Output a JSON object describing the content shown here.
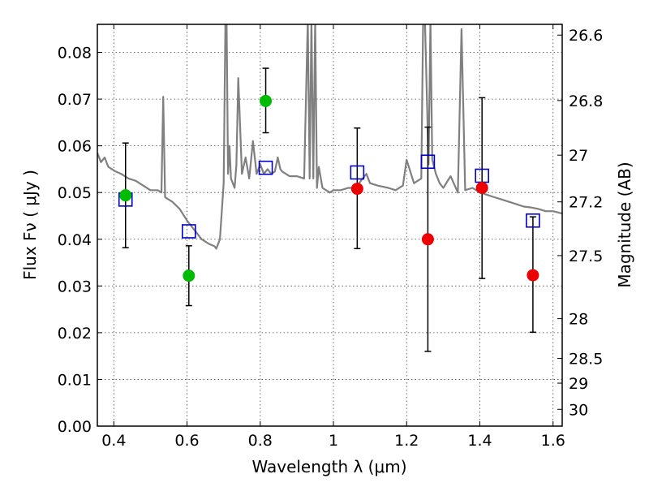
{
  "chart_data": {
    "type": "scatter",
    "title": "",
    "xlabel": "Wavelength  λ (μm)",
    "ylabel": "Flux  Fν  ( μJy )",
    "y2label": "Magnitude (AB)",
    "xlim": [
      0.355,
      1.625
    ],
    "ylim": [
      0.0,
      0.086
    ],
    "grid": true,
    "x_ticks": [
      0.4,
      0.6,
      0.8,
      1.0,
      1.2,
      1.4,
      1.6
    ],
    "x_tick_labels": [
      "0.4",
      "0.6",
      "0.8",
      "1",
      "1.2",
      "1.4",
      "1.6"
    ],
    "y_ticks": [
      0.0,
      0.01,
      0.02,
      0.03,
      0.04,
      0.05,
      0.06,
      0.07,
      0.08
    ],
    "y_tick_labels": [
      "0.00",
      "0.01",
      "0.02",
      "0.03",
      "0.04",
      "0.05",
      "0.06",
      "0.07",
      "0.08"
    ],
    "y2_ticks": [
      {
        "flux": 0.0837,
        "label": "26.6"
      },
      {
        "flux": 0.0697,
        "label": "26.8"
      },
      {
        "flux": 0.058,
        "label": "27"
      },
      {
        "flux": 0.048,
        "label": "27.2"
      },
      {
        "flux": 0.0365,
        "label": "27.5"
      },
      {
        "flux": 0.023,
        "label": "28"
      },
      {
        "flux": 0.0145,
        "label": "28.5"
      },
      {
        "flux": 0.0092,
        "label": "29"
      },
      {
        "flux": 0.0036,
        "label": "30"
      }
    ],
    "colors": {
      "model": "#808080",
      "squares": "#0000cc",
      "green": "#00bb00",
      "red": "#ee0000",
      "errorbar": "#000000"
    },
    "series": [
      {
        "marker": "square",
        "x": [
          0.432,
          0.605,
          0.815,
          1.065,
          1.258,
          1.406,
          1.545
        ],
        "y": [
          0.0485,
          0.0417,
          0.0553,
          0.0543,
          0.0566,
          0.0536,
          0.044
        ]
      },
      {
        "marker": "circle",
        "x": [
          0.432,
          0.605,
          0.815
        ],
        "y": [
          0.0494,
          0.0322,
          0.0696
        ],
        "yerr_low": [
          0.0382,
          0.0258,
          0.0628
        ],
        "yerr_high": [
          0.0606,
          0.0386,
          0.0766
        ],
        "color": "green"
      },
      {
        "marker": "circle",
        "x": [
          1.065,
          1.258,
          1.406,
          1.545
        ],
        "y": [
          0.0508,
          0.04,
          0.051,
          0.0323
        ],
        "yerr_low": [
          0.038,
          0.016,
          0.0316,
          0.0201
        ],
        "yerr_high": [
          0.0638,
          0.064,
          0.0703,
          0.0448
        ],
        "color": "red"
      },
      {
        "type": "line",
        "x": [
          0.355,
          0.365,
          0.375,
          0.385,
          0.395,
          0.405,
          0.42,
          0.44,
          0.46,
          0.48,
          0.5,
          0.52,
          0.53,
          0.535,
          0.54,
          0.56,
          0.58,
          0.6,
          0.62,
          0.64,
          0.66,
          0.675,
          0.68,
          0.69,
          0.7,
          0.705,
          0.708,
          0.712,
          0.716,
          0.72,
          0.73,
          0.735,
          0.74,
          0.75,
          0.76,
          0.77,
          0.78,
          0.79,
          0.8,
          0.81,
          0.82,
          0.83,
          0.84,
          0.848,
          0.855,
          0.86,
          0.87,
          0.88,
          0.9,
          0.92,
          0.93,
          0.935,
          0.94,
          0.945,
          0.95,
          0.955,
          0.96,
          0.97,
          0.98,
          0.99,
          1.0,
          1.02,
          1.04,
          1.06,
          1.09,
          1.1,
          1.12,
          1.15,
          1.17,
          1.19,
          1.2,
          1.22,
          1.24,
          1.245,
          1.25,
          1.26,
          1.265,
          1.27,
          1.28,
          1.29,
          1.3,
          1.32,
          1.34,
          1.35,
          1.36,
          1.38,
          1.4,
          1.42,
          1.44,
          1.46,
          1.48,
          1.5,
          1.52,
          1.54,
          1.56,
          1.58,
          1.6,
          1.625
        ],
        "y": [
          0.0585,
          0.0565,
          0.0575,
          0.0555,
          0.055,
          0.0545,
          0.054,
          0.053,
          0.0525,
          0.0515,
          0.0505,
          0.0505,
          0.05,
          0.0705,
          0.049,
          0.048,
          0.0465,
          0.044,
          0.042,
          0.04,
          0.039,
          0.0385,
          0.038,
          0.04,
          0.052,
          0.087,
          0.087,
          0.054,
          0.06,
          0.053,
          0.051,
          0.056,
          0.0745,
          0.054,
          0.0575,
          0.053,
          0.061,
          0.054,
          0.056,
          0.054,
          0.055,
          0.054,
          0.0545,
          0.0575,
          0.055,
          0.0545,
          0.054,
          0.0535,
          0.0535,
          0.053,
          0.087,
          0.053,
          0.087,
          0.053,
          0.087,
          0.051,
          0.0555,
          0.051,
          0.0505,
          0.05,
          0.0505,
          0.0505,
          0.051,
          0.051,
          0.054,
          0.052,
          0.0515,
          0.051,
          0.0505,
          0.0515,
          0.057,
          0.052,
          0.053,
          0.087,
          0.087,
          0.056,
          0.087,
          0.057,
          0.054,
          0.052,
          0.051,
          0.0535,
          0.05,
          0.085,
          0.0505,
          0.051,
          0.05,
          0.0495,
          0.049,
          0.0485,
          0.048,
          0.0475,
          0.047,
          0.0468,
          0.0465,
          0.046,
          0.046,
          0.0455
        ]
      }
    ]
  }
}
